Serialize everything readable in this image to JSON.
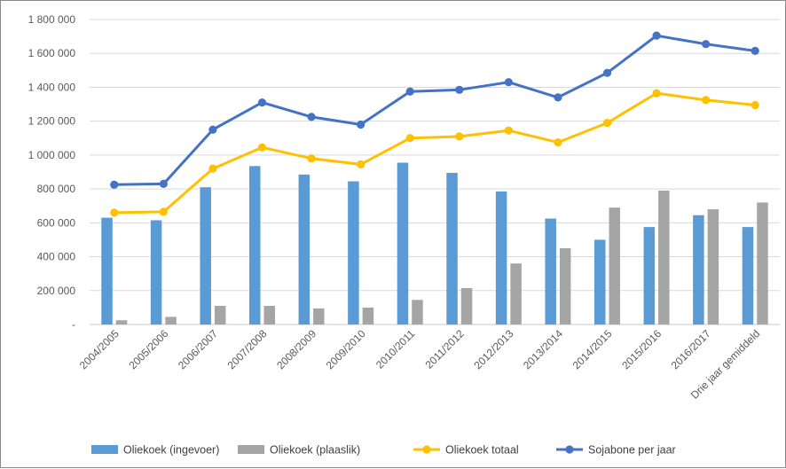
{
  "chart_data": {
    "type": "bar",
    "title": "",
    "xlabel": "",
    "ylabel": "",
    "categories": [
      "2004/2005",
      "2005/2006",
      "2006/2007",
      "2007/2008",
      "2008/2009",
      "2009/2010",
      "2010/2011",
      "2011/2012",
      "2012/2013",
      "2013/2014",
      "2014/2015",
      "2015/2016",
      "2016/2017",
      "Drie jaar gemiddeld"
    ],
    "ylim": [
      0,
      1800000
    ],
    "y_ticks": [
      0,
      200000,
      400000,
      600000,
      800000,
      1000000,
      1200000,
      1400000,
      1600000,
      1800000
    ],
    "y_tick_labels": [
      "-",
      "200 000",
      "400 000",
      "600 000",
      "800 000",
      "1 000 000",
      "1 200 000",
      "1 400 000",
      "1 600 000",
      "1 800 000"
    ],
    "grid": true,
    "legend_position": "bottom",
    "series": [
      {
        "name": "Oliekoek (ingevoer)",
        "kind": "bar",
        "color": "#5b9bd5",
        "values": [
          630000,
          615000,
          810000,
          935000,
          885000,
          845000,
          955000,
          895000,
          785000,
          625000,
          500000,
          575000,
          645000,
          575000
        ]
      },
      {
        "name": "Oliekoek (plaaslik)",
        "kind": "bar",
        "color": "#a5a5a5",
        "values": [
          25000,
          45000,
          110000,
          110000,
          95000,
          100000,
          145000,
          215000,
          360000,
          450000,
          690000,
          790000,
          680000,
          720000
        ]
      },
      {
        "name": "Oliekoek totaal",
        "kind": "line",
        "color": "#ffc000",
        "values": [
          660000,
          665000,
          920000,
          1045000,
          980000,
          945000,
          1100000,
          1110000,
          1145000,
          1075000,
          1190000,
          1365000,
          1325000,
          1295000
        ]
      },
      {
        "name": "Sojabone per jaar",
        "kind": "line",
        "color": "#4472c4",
        "values": [
          825000,
          830000,
          1150000,
          1310000,
          1225000,
          1180000,
          1375000,
          1385000,
          1430000,
          1340000,
          1485000,
          1705000,
          1655000,
          1615000
        ]
      }
    ]
  }
}
